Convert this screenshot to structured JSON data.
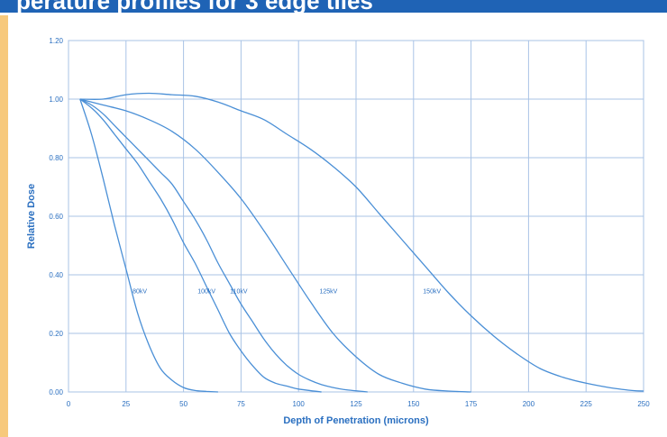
{
  "header": {
    "title_fragment": "perature profiles for 3 edge tiles"
  },
  "chart_data": {
    "type": "line",
    "title": "",
    "xlabel": "Depth of Penetration (microns)",
    "ylabel": "Relative Dose",
    "xlim": [
      0,
      250
    ],
    "ylim": [
      0,
      1.2
    ],
    "xticks": [
      0,
      25,
      50,
      75,
      100,
      125,
      150,
      175,
      200,
      225,
      250
    ],
    "yticks": [
      0,
      0.2,
      0.4,
      0.6,
      0.8,
      1.0,
      1.2
    ],
    "xtick_labels": [
      "0",
      "25",
      "50",
      "75",
      "100",
      "125",
      "150",
      "175",
      "200",
      "225",
      "250"
    ],
    "ytick_labels": [
      "0.00",
      "0.20",
      "0.40",
      "0.60",
      "0.80",
      "1.00",
      "1.20"
    ],
    "grid": true,
    "line_color": "#4a8fd6",
    "series": [
      {
        "name": "80kV",
        "x": [
          5,
          10,
          15,
          20,
          25,
          30,
          35,
          40,
          45,
          50,
          55,
          60,
          65
        ],
        "y": [
          1.0,
          0.88,
          0.73,
          0.57,
          0.42,
          0.27,
          0.16,
          0.08,
          0.04,
          0.015,
          0.005,
          0.002,
          0.0
        ],
        "label_at": [
          31,
          0.35
        ]
      },
      {
        "name": "100kV",
        "x": [
          5,
          10,
          15,
          20,
          25,
          30,
          35,
          40,
          45,
          50,
          55,
          60,
          65,
          70,
          75,
          80,
          85,
          90,
          95,
          100,
          110
        ],
        "y": [
          1.0,
          0.97,
          0.93,
          0.88,
          0.83,
          0.78,
          0.72,
          0.66,
          0.59,
          0.51,
          0.44,
          0.36,
          0.28,
          0.2,
          0.14,
          0.09,
          0.05,
          0.03,
          0.02,
          0.01,
          0.0
        ],
        "label_at": [
          60,
          0.35
        ]
      },
      {
        "name": "110kV",
        "x": [
          5,
          10,
          15,
          20,
          25,
          30,
          35,
          40,
          45,
          50,
          55,
          60,
          65,
          70,
          75,
          80,
          85,
          90,
          95,
          100,
          105,
          110,
          115,
          120,
          130
        ],
        "y": [
          1.0,
          0.98,
          0.95,
          0.91,
          0.87,
          0.83,
          0.79,
          0.75,
          0.71,
          0.65,
          0.59,
          0.52,
          0.44,
          0.37,
          0.3,
          0.24,
          0.18,
          0.13,
          0.09,
          0.06,
          0.04,
          0.025,
          0.015,
          0.008,
          0.0
        ],
        "label_at": [
          74,
          0.35
        ]
      },
      {
        "name": "125kV",
        "x": [
          5,
          15,
          25,
          35,
          45,
          55,
          65,
          75,
          85,
          95,
          105,
          115,
          125,
          135,
          145,
          155,
          165,
          175
        ],
        "y": [
          1.0,
          0.98,
          0.96,
          0.93,
          0.89,
          0.83,
          0.75,
          0.66,
          0.55,
          0.43,
          0.31,
          0.2,
          0.12,
          0.06,
          0.03,
          0.01,
          0.003,
          0.0
        ],
        "label_at": [
          113,
          0.35
        ]
      },
      {
        "name": "150kV",
        "x": [
          5,
          15,
          25,
          35,
          45,
          55,
          65,
          75,
          85,
          95,
          105,
          115,
          125,
          135,
          145,
          155,
          165,
          175,
          185,
          195,
          205,
          215,
          225,
          235,
          245,
          250
        ],
        "y": [
          1.0,
          1.0,
          1.015,
          1.02,
          1.015,
          1.01,
          0.99,
          0.96,
          0.93,
          0.88,
          0.83,
          0.77,
          0.7,
          0.61,
          0.52,
          0.43,
          0.34,
          0.26,
          0.19,
          0.13,
          0.08,
          0.05,
          0.03,
          0.015,
          0.005,
          0.003
        ],
        "label_at": [
          158,
          0.35
        ]
      }
    ]
  }
}
